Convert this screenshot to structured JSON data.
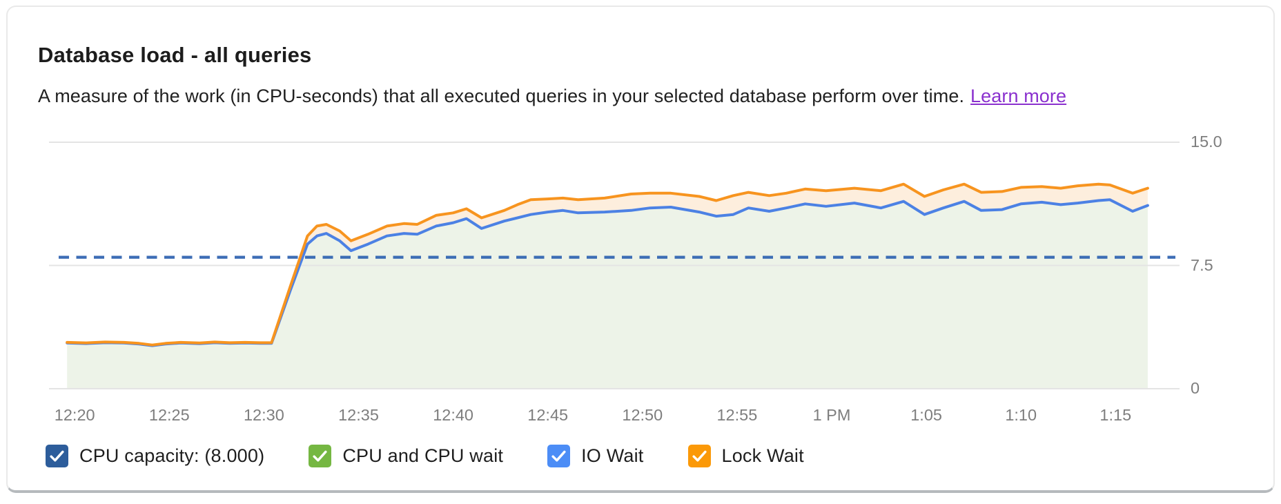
{
  "card": {
    "title": "Database load - all queries",
    "subtitle": "A measure of the work (in CPU-seconds) that all executed queries in your selected database perform over time.",
    "learn_more_label": "Learn more"
  },
  "chart_data": {
    "type": "area",
    "title": "Database load - all queries",
    "grid": "horizontal-only",
    "legend_position": "bottom",
    "x": {
      "unit": "time",
      "tick_labels": [
        "12:20",
        "12:25",
        "12:30",
        "12:35",
        "12:40",
        "12:45",
        "12:50",
        "12:55",
        "1 PM",
        "1:05",
        "1:10",
        "1:15"
      ],
      "tick_interval_minutes": 5
    },
    "y": {
      "min": 0,
      "max": 15,
      "tick_values": [
        15,
        7.5,
        0
      ],
      "tick_labels": [
        "15.0",
        "7.5",
        "0"
      ]
    },
    "capacity_line": {
      "label": "CPU capacity: (8.000)",
      "value": 8,
      "style": "dashed",
      "color": "#3c6db5"
    },
    "t_minutes_after_12_20": [
      -0.4,
      0.6,
      1.6,
      2.6,
      3.4,
      4.1,
      4.8,
      5.6,
      6.6,
      7.4,
      8.2,
      9.0,
      9.8,
      10.4,
      11.4,
      12.3,
      12.8,
      13.3,
      14.0,
      14.6,
      15.5,
      16.5,
      17.4,
      18.1,
      19.1,
      20.0,
      20.7,
      21.5,
      22.7,
      23.4,
      24.1,
      25.0,
      25.8,
      26.6,
      28.0,
      29.4,
      30.4,
      31.5,
      33.0,
      33.9,
      34.8,
      35.6,
      36.7,
      37.6,
      38.6,
      39.7,
      41.2,
      42.6,
      43.8,
      44.9,
      45.9,
      47.0,
      47.9,
      49.0,
      50.0,
      51.1,
      52.1,
      53.0,
      54.1,
      54.7,
      55.9,
      56.7
    ],
    "series": [
      {
        "name": "CPU and CPU wait",
        "role": "stacked-area-below-io-wait",
        "fill_color": "#edf3e8",
        "legend_color": "#75b742"
      },
      {
        "name": "IO Wait",
        "role": "stack-top-line",
        "line_color": "#4c81e4",
        "legend_color": "#4c8df6",
        "values": [
          2.78,
          2.75,
          2.8,
          2.78,
          2.72,
          2.62,
          2.72,
          2.78,
          2.74,
          2.8,
          2.76,
          2.78,
          2.76,
          2.76,
          6.0,
          8.8,
          9.3,
          9.45,
          9.0,
          8.4,
          8.8,
          9.3,
          9.45,
          9.4,
          9.9,
          10.1,
          10.35,
          9.75,
          10.2,
          10.4,
          10.6,
          10.75,
          10.85,
          10.7,
          10.75,
          10.85,
          11.0,
          11.05,
          10.75,
          10.5,
          10.6,
          11.0,
          10.8,
          11.0,
          11.25,
          11.1,
          11.3,
          11.0,
          11.4,
          10.6,
          11.0,
          11.4,
          10.85,
          10.9,
          11.25,
          11.35,
          11.2,
          11.3,
          11.45,
          11.5,
          10.8,
          11.15
        ]
      },
      {
        "name": "Lock Wait",
        "role": "stack-top-line",
        "line_color": "#f7941f",
        "legend_color": "#fb9908",
        "fill_between_color": "#fdeedd",
        "values": [
          2.82,
          2.79,
          2.84,
          2.82,
          2.76,
          2.66,
          2.76,
          2.82,
          2.78,
          2.84,
          2.8,
          2.82,
          2.8,
          2.8,
          6.25,
          9.3,
          9.9,
          10.0,
          9.6,
          9.0,
          9.4,
          9.9,
          10.05,
          10.0,
          10.55,
          10.7,
          10.95,
          10.4,
          10.85,
          11.2,
          11.5,
          11.55,
          11.6,
          11.5,
          11.6,
          11.85,
          11.9,
          11.9,
          11.7,
          11.45,
          11.75,
          11.95,
          11.75,
          11.9,
          12.15,
          12.05,
          12.2,
          12.05,
          12.45,
          11.7,
          12.1,
          12.45,
          11.95,
          12.0,
          12.25,
          12.3,
          12.2,
          12.35,
          12.45,
          12.4,
          11.9,
          12.2
        ]
      }
    ]
  },
  "legend": {
    "check_glyph": "checkmark",
    "items": [
      {
        "label": "CPU capacity: (8.000)",
        "color": "#2d5d9b",
        "checked": true
      },
      {
        "label": "CPU and CPU wait",
        "color": "#75b742",
        "checked": true
      },
      {
        "label": "IO Wait",
        "color": "#4c8df6",
        "checked": true
      },
      {
        "label": "Lock Wait",
        "color": "#fb9908",
        "checked": true
      }
    ]
  }
}
